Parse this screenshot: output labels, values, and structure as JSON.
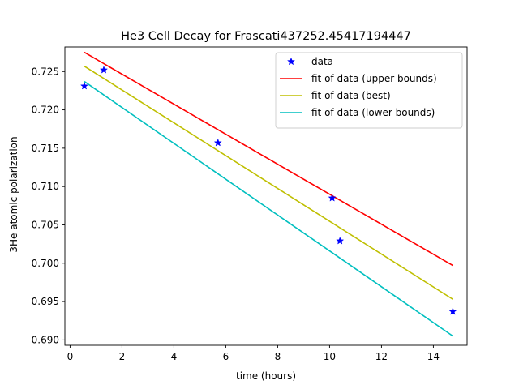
{
  "chart_data": {
    "type": "line",
    "title": "He3 Cell Decay for Frascati437252.45417194447",
    "xlabel": "time (hours)",
    "ylabel": "3He atomic polarization",
    "xlim": [
      -0.2,
      15.3
    ],
    "ylim": [
      0.6893,
      0.7282
    ],
    "xticks": [
      0,
      2,
      4,
      6,
      8,
      10,
      12,
      14
    ],
    "xtick_labels": [
      "0",
      "2",
      "4",
      "6",
      "8",
      "10",
      "12",
      "14"
    ],
    "yticks": [
      0.69,
      0.695,
      0.7,
      0.705,
      0.71,
      0.715,
      0.72,
      0.725
    ],
    "ytick_labels": [
      "0.690",
      "0.695",
      "0.700",
      "0.705",
      "0.710",
      "0.715",
      "0.720",
      "0.725"
    ],
    "grid": false,
    "legend_position": "top-right",
    "series": [
      {
        "name": "data",
        "kind": "scatter",
        "marker": "star",
        "color": "#0000ff",
        "x": [
          0.55,
          1.3,
          5.7,
          10.1,
          10.4,
          14.75
        ],
        "y": [
          0.7231,
          0.7252,
          0.7157,
          0.7085,
          0.7029,
          0.6937
        ]
      },
      {
        "name": "fit of data (upper bounds)",
        "kind": "line",
        "color": "#ff0000",
        "x": [
          0.55,
          14.75
        ],
        "y": [
          0.7275,
          0.6997
        ]
      },
      {
        "name": "fit of data (best)",
        "kind": "line",
        "color": "#bfbf00",
        "x": [
          0.55,
          14.75
        ],
        "y": [
          0.7257,
          0.6953
        ]
      },
      {
        "name": "fit of data (lower bounds)",
        "kind": "line",
        "color": "#00bfbf",
        "x": [
          0.55,
          14.75
        ],
        "y": [
          0.7237,
          0.6905
        ]
      }
    ]
  }
}
